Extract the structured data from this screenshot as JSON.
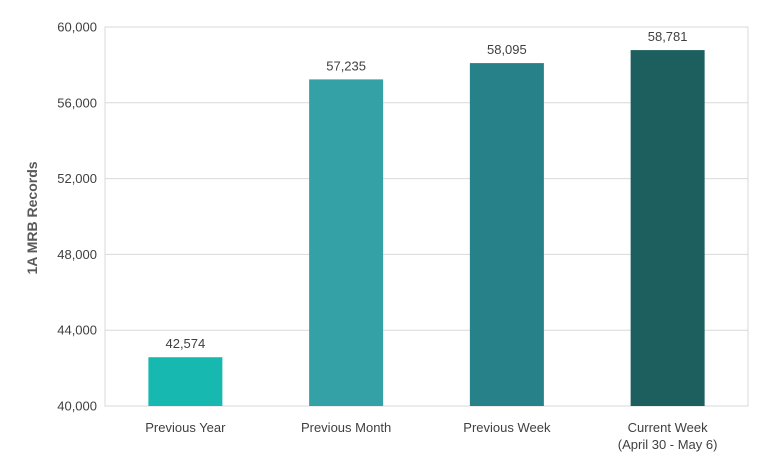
{
  "chart_data": {
    "type": "bar",
    "title": "",
    "xlabel": "",
    "ylabel": "1A MRB Records",
    "ylim": [
      40000,
      60000
    ],
    "yticks": [
      40000,
      44000,
      48000,
      52000,
      56000,
      60000
    ],
    "ytick_labels": [
      "40,000",
      "44,000",
      "48,000",
      "52,000",
      "56,000",
      "60,000"
    ],
    "grid": true,
    "categories": [
      [
        "Previous Year"
      ],
      [
        "Previous Month"
      ],
      [
        "Previous Week"
      ],
      [
        "Current Week",
        "(April 30 - May 6)"
      ]
    ],
    "values": [
      42574,
      57235,
      58095,
      58781
    ],
    "value_labels": [
      "42,574",
      "57,235",
      "58,095",
      "58,781"
    ],
    "colors": [
      "#17b8b0",
      "#33a1a5",
      "#278188",
      "#1c5f5e"
    ]
  }
}
